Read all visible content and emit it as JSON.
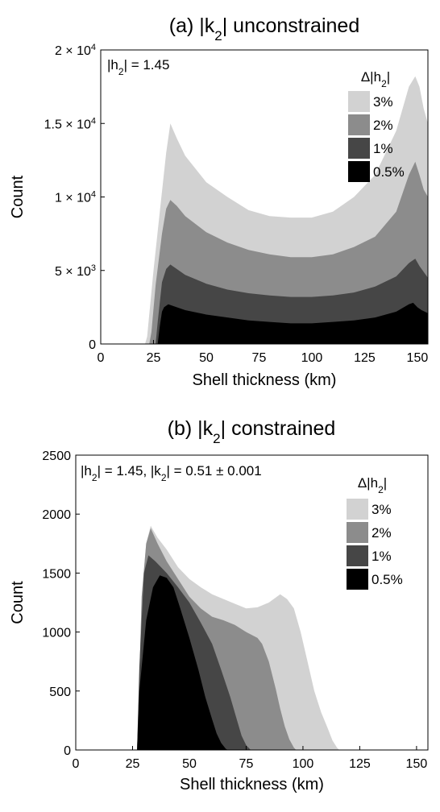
{
  "chart_data": [
    {
      "type": "area",
      "title_prefix": "(a) |k",
      "title_sub": "2",
      "title_suffix": "| unconstrained",
      "xlabel": "Shell thickness (km)",
      "ylabel": "Count",
      "xlim": [
        0,
        155
      ],
      "ylim": [
        0,
        20000
      ],
      "xticks": [
        0,
        25,
        50,
        75,
        100,
        125,
        150
      ],
      "yticks": [
        {
          "value": 0,
          "label": "0",
          "exp": ""
        },
        {
          "value": 5000,
          "label": "5 × 10",
          "exp": "3"
        },
        {
          "value": 10000,
          "label": "1 × 10",
          "exp": "4"
        },
        {
          "value": 15000,
          "label": "1.5 × 10",
          "exp": "4"
        },
        {
          "value": 20000,
          "label": "2 × 10",
          "exp": "4"
        }
      ],
      "annotation": {
        "prefix": "|h",
        "sub": "2",
        "suffix": "| = 1.45"
      },
      "legend_title": {
        "prefix": "Δ|h",
        "sub": "2",
        "suffix": "|"
      },
      "legend_position": "top-right",
      "grid": false,
      "series": [
        {
          "name": "3%",
          "color": "#d2d2d2",
          "points": [
            [
              21,
              0
            ],
            [
              22,
              500
            ],
            [
              23,
              2000
            ],
            [
              25,
              5000
            ],
            [
              28,
              9000
            ],
            [
              31,
              13000
            ],
            [
              33,
              15000
            ],
            [
              36,
              14000
            ],
            [
              40,
              12800
            ],
            [
              50,
              11000
            ],
            [
              60,
              10000
            ],
            [
              70,
              9100
            ],
            [
              80,
              8700
            ],
            [
              90,
              8600
            ],
            [
              100,
              8600
            ],
            [
              110,
              9000
            ],
            [
              120,
              10000
            ],
            [
              130,
              11500
            ],
            [
              140,
              14500
            ],
            [
              146,
              17500
            ],
            [
              149,
              18200
            ],
            [
              151,
              17500
            ],
            [
              153,
              16000
            ],
            [
              155,
              15000
            ]
          ]
        },
        {
          "name": "2%",
          "color": "#8c8c8c",
          "points": [
            [
              23,
              0
            ],
            [
              24,
              800
            ],
            [
              26,
              4000
            ],
            [
              29,
              7500
            ],
            [
              31,
              9200
            ],
            [
              33,
              9800
            ],
            [
              36,
              9400
            ],
            [
              40,
              8700
            ],
            [
              50,
              7600
            ],
            [
              60,
              6900
            ],
            [
              70,
              6400
            ],
            [
              80,
              6100
            ],
            [
              90,
              5900
            ],
            [
              100,
              5900
            ],
            [
              110,
              6100
            ],
            [
              120,
              6600
            ],
            [
              130,
              7300
            ],
            [
              140,
              9000
            ],
            [
              146,
              11500
            ],
            [
              149,
              12400
            ],
            [
              151,
              11500
            ],
            [
              153,
              10500
            ],
            [
              155,
              10000
            ]
          ]
        },
        {
          "name": "1%",
          "color": "#464646",
          "points": [
            [
              26,
              0
            ],
            [
              27,
              1500
            ],
            [
              29,
              4200
            ],
            [
              31,
              5100
            ],
            [
              33,
              5400
            ],
            [
              36,
              5100
            ],
            [
              40,
              4700
            ],
            [
              50,
              4100
            ],
            [
              60,
              3700
            ],
            [
              70,
              3450
            ],
            [
              80,
              3300
            ],
            [
              90,
              3200
            ],
            [
              100,
              3200
            ],
            [
              110,
              3300
            ],
            [
              120,
              3500
            ],
            [
              130,
              3900
            ],
            [
              140,
              4600
            ],
            [
              146,
              5500
            ],
            [
              149,
              5800
            ],
            [
              151,
              5300
            ],
            [
              153,
              4900
            ],
            [
              155,
              4500
            ]
          ]
        },
        {
          "name": "0.5%",
          "color": "#000000",
          "points": [
            [
              27,
              0
            ],
            [
              28,
              1200
            ],
            [
              29,
              2200
            ],
            [
              30,
              2500
            ],
            [
              32,
              2700
            ],
            [
              36,
              2500
            ],
            [
              40,
              2300
            ],
            [
              50,
              2000
            ],
            [
              60,
              1800
            ],
            [
              70,
              1600
            ],
            [
              80,
              1500
            ],
            [
              90,
              1400
            ],
            [
              100,
              1400
            ],
            [
              110,
              1500
            ],
            [
              120,
              1600
            ],
            [
              130,
              1800
            ],
            [
              140,
              2200
            ],
            [
              146,
              2700
            ],
            [
              148,
              2800
            ],
            [
              150,
              2500
            ],
            [
              152,
              2300
            ],
            [
              155,
              2100
            ]
          ]
        }
      ]
    },
    {
      "type": "area",
      "title_prefix": "(b) |k",
      "title_sub": "2",
      "title_suffix": "| constrained",
      "xlabel": "Shell thickness (km)",
      "ylabel": "Count",
      "xlim": [
        0,
        155
      ],
      "ylim": [
        0,
        2500
      ],
      "xticks": [
        0,
        25,
        50,
        75,
        100,
        125,
        150
      ],
      "yticks": [
        {
          "value": 0,
          "label": "0",
          "exp": ""
        },
        {
          "value": 500,
          "label": "500",
          "exp": ""
        },
        {
          "value": 1000,
          "label": "1000",
          "exp": ""
        },
        {
          "value": 1500,
          "label": "1500",
          "exp": ""
        },
        {
          "value": 2000,
          "label": "2000",
          "exp": ""
        },
        {
          "value": 2500,
          "label": "2500",
          "exp": ""
        }
      ],
      "annotation": {
        "prefix": "|h",
        "sub": "2",
        "suffix": "| = 1.45, |k",
        "sub2": "2",
        "suffix2": "| = 0.51 ± 0.001"
      },
      "legend_title": {
        "prefix": "Δ|h",
        "sub": "2",
        "suffix": "|"
      },
      "legend_position": "top-right",
      "grid": false,
      "series": [
        {
          "name": "3%",
          "color": "#d2d2d2",
          "points": [
            [
              27,
              0
            ],
            [
              28,
              600
            ],
            [
              29,
              1300
            ],
            [
              31,
              1750
            ],
            [
              33,
              1900
            ],
            [
              36,
              1800
            ],
            [
              40,
              1700
            ],
            [
              45,
              1550
            ],
            [
              50,
              1450
            ],
            [
              55,
              1380
            ],
            [
              60,
              1320
            ],
            [
              65,
              1280
            ],
            [
              70,
              1240
            ],
            [
              75,
              1200
            ],
            [
              80,
              1210
            ],
            [
              85,
              1250
            ],
            [
              90,
              1320
            ],
            [
              93,
              1280
            ],
            [
              96,
              1200
            ],
            [
              99,
              1000
            ],
            [
              102,
              750
            ],
            [
              105,
              500
            ],
            [
              108,
              320
            ],
            [
              111,
              180
            ],
            [
              113,
              80
            ],
            [
              115,
              20
            ],
            [
              116,
              0
            ]
          ]
        },
        {
          "name": "2%",
          "color": "#8c8c8c",
          "points": [
            [
              27,
              0
            ],
            [
              28,
              600
            ],
            [
              29,
              1300
            ],
            [
              31,
              1750
            ],
            [
              33,
              1880
            ],
            [
              36,
              1750
            ],
            [
              40,
              1600
            ],
            [
              45,
              1450
            ],
            [
              50,
              1300
            ],
            [
              55,
              1200
            ],
            [
              60,
              1130
            ],
            [
              65,
              1100
            ],
            [
              70,
              1060
            ],
            [
              75,
              1000
            ],
            [
              80,
              950
            ],
            [
              82,
              900
            ],
            [
              85,
              750
            ],
            [
              88,
              520
            ],
            [
              90,
              350
            ],
            [
              92,
              200
            ],
            [
              94,
              90
            ],
            [
              96,
              20
            ],
            [
              97,
              0
            ]
          ]
        },
        {
          "name": "1%",
          "color": "#464646",
          "points": [
            [
              27,
              0
            ],
            [
              28,
              700
            ],
            [
              30,
              1500
            ],
            [
              32,
              1650
            ],
            [
              35,
              1600
            ],
            [
              40,
              1500
            ],
            [
              45,
              1380
            ],
            [
              50,
              1250
            ],
            [
              55,
              1080
            ],
            [
              60,
              900
            ],
            [
              64,
              680
            ],
            [
              68,
              450
            ],
            [
              71,
              250
            ],
            [
              73,
              120
            ],
            [
              75,
              40
            ],
            [
              77,
              0
            ]
          ]
        },
        {
          "name": "0.5%",
          "color": "#000000",
          "points": [
            [
              27,
              0
            ],
            [
              28,
              500
            ],
            [
              31,
              1100
            ],
            [
              34,
              1380
            ],
            [
              37,
              1480
            ],
            [
              40,
              1460
            ],
            [
              43,
              1380
            ],
            [
              46,
              1200
            ],
            [
              50,
              950
            ],
            [
              54,
              680
            ],
            [
              57,
              450
            ],
            [
              60,
              260
            ],
            [
              62,
              140
            ],
            [
              64,
              60
            ],
            [
              66,
              10
            ],
            [
              67,
              0
            ]
          ]
        }
      ]
    }
  ]
}
